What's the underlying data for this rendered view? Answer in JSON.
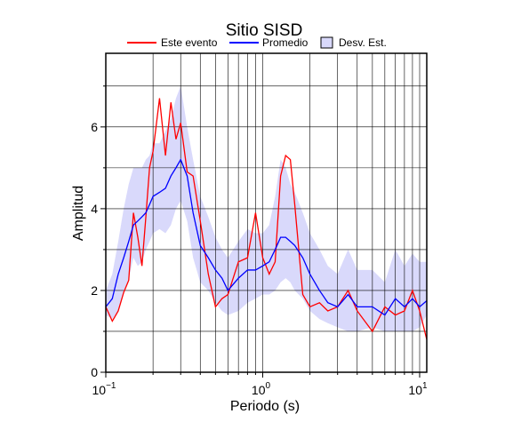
{
  "chart_data": {
    "type": "line",
    "title": "Sitio SISD",
    "xlabel": "Periodo (s)",
    "ylabel": "Amplitud",
    "xscale": "log",
    "xlim": [
      0.1,
      11.1
    ],
    "ylim": [
      0,
      7.8
    ],
    "xticks": [
      {
        "value": 0.1,
        "label": "10",
        "exponent": "−1"
      },
      {
        "value": 1,
        "label": "10",
        "exponent": "0"
      },
      {
        "value": 10,
        "label": "10",
        "exponent": "1"
      }
    ],
    "xminor": [
      0.2,
      0.3,
      0.4,
      0.5,
      0.6,
      0.7,
      0.8,
      0.9,
      2,
      3,
      4,
      5,
      6,
      7,
      8,
      9
    ],
    "yticks": [
      0,
      2,
      4,
      6
    ],
    "yminor": [
      1,
      3,
      5,
      7
    ],
    "grid": true,
    "x": [
      0.1,
      0.11,
      0.12,
      0.13,
      0.14,
      0.15,
      0.16,
      0.17,
      0.18,
      0.19,
      0.2,
      0.22,
      0.24,
      0.26,
      0.28,
      0.3,
      0.33,
      0.36,
      0.4,
      0.45,
      0.5,
      0.55,
      0.6,
      0.7,
      0.8,
      0.9,
      1.0,
      1.1,
      1.2,
      1.3,
      1.4,
      1.5,
      1.6,
      1.8,
      2.0,
      2.3,
      2.6,
      3.0,
      3.5,
      4.0,
      5.0,
      6.0,
      7.0,
      8.0,
      9.0,
      10,
      11.1
    ],
    "band": {
      "name": "Desv. Est.",
      "color": "#d9d9fb",
      "lower": [
        1.4,
        1.3,
        1.5,
        1.9,
        2.3,
        2.8,
        2.6,
        2.7,
        3.0,
        3.2,
        3.4,
        3.5,
        3.4,
        3.6,
        4.0,
        4.2,
        3.7,
        2.8,
        2.2,
        2.0,
        1.7,
        1.5,
        1.4,
        1.5,
        1.7,
        1.8,
        1.9,
        1.9,
        2.0,
        2.2,
        2.3,
        2.2,
        2.0,
        1.8,
        1.5,
        1.3,
        1.2,
        1.1,
        1.0,
        1.0,
        1.1,
        1.0,
        1.0,
        1.0,
        1.0,
        1.1,
        1.4
      ],
      "upper": [
        2.0,
        2.4,
        3.2,
        4.0,
        4.6,
        5.0,
        5.0,
        5.0,
        5.2,
        5.3,
        5.6,
        5.6,
        5.9,
        6.2,
        6.7,
        7.0,
        6.0,
        5.2,
        4.3,
        3.8,
        3.3,
        3.0,
        2.8,
        3.2,
        3.5,
        3.4,
        3.4,
        3.6,
        4.3,
        5.2,
        5.0,
        4.6,
        4.4,
        3.9,
        3.4,
        3.0,
        2.6,
        2.4,
        3.0,
        2.5,
        2.5,
        2.2,
        3.0,
        2.6,
        2.9,
        2.7,
        2.7
      ]
    },
    "series": [
      {
        "name": "Este evento",
        "color": "#ff0000",
        "values": [
          1.6,
          1.25,
          1.5,
          1.95,
          2.25,
          3.9,
          3.3,
          2.6,
          3.8,
          5.0,
          5.4,
          6.7,
          5.3,
          6.6,
          5.7,
          6.1,
          4.9,
          4.8,
          3.7,
          2.4,
          1.6,
          1.8,
          1.9,
          2.7,
          2.8,
          3.9,
          2.8,
          2.4,
          2.7,
          4.8,
          5.3,
          5.2,
          4.1,
          1.9,
          1.6,
          1.7,
          1.5,
          1.6,
          2.0,
          1.5,
          1.0,
          1.6,
          1.4,
          1.5,
          2.0,
          1.5,
          0.8
        ]
      },
      {
        "name": "Promedio",
        "color": "#0000ff",
        "values": [
          1.6,
          1.8,
          2.4,
          2.8,
          3.2,
          3.6,
          3.7,
          3.8,
          3.9,
          4.1,
          4.3,
          4.4,
          4.5,
          4.8,
          5.0,
          5.2,
          4.8,
          3.9,
          3.1,
          2.8,
          2.5,
          2.3,
          2.0,
          2.3,
          2.5,
          2.5,
          2.6,
          2.7,
          3.0,
          3.3,
          3.3,
          3.2,
          3.1,
          2.8,
          2.4,
          2.0,
          1.7,
          1.6,
          1.9,
          1.6,
          1.6,
          1.4,
          1.8,
          1.6,
          1.8,
          1.6,
          1.75
        ]
      }
    ]
  }
}
